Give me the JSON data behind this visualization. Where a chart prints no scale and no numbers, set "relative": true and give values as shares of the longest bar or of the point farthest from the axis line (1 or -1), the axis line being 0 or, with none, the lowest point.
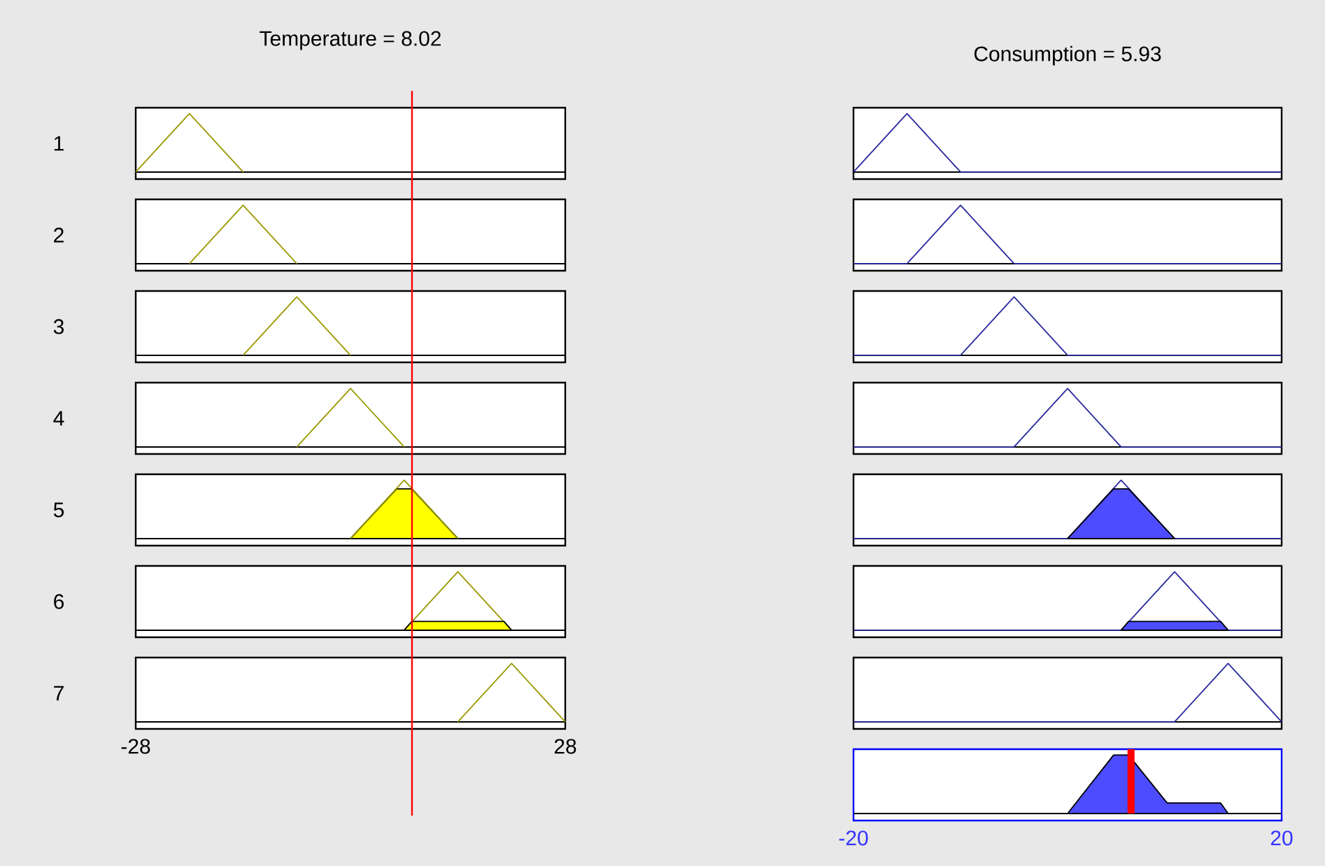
{
  "chart_data": [
    {
      "type": "line",
      "title": "Temperature = 8.02",
      "ylabel": "1",
      "relative": true,
      "xlim": [
        -28,
        28
      ],
      "xticks": [
        -28,
        28
      ],
      "tick_labels": false,
      "ref_lines": [
        {
          "axis": "x",
          "value": 8.02,
          "color": "#ff0000"
        }
      ],
      "series": [
        {
          "color": "#999900",
          "x": [
            -28,
            -21,
            -14
          ],
          "values": [
            0,
            1,
            0
          ]
        }
      ]
    },
    {
      "type": "line",
      "ylabel": "2",
      "relative": true,
      "xlim": [
        -28,
        28
      ],
      "xticks": [
        -28,
        28
      ],
      "tick_labels": false,
      "ref_lines": [
        {
          "axis": "x",
          "value": 8.02,
          "color": "#ff0000"
        }
      ],
      "series": [
        {
          "color": "#999900",
          "x": [
            -21,
            -14,
            -7
          ],
          "values": [
            0,
            1,
            0
          ]
        }
      ]
    },
    {
      "type": "line",
      "ylabel": "3",
      "relative": true,
      "xlim": [
        -28,
        28
      ],
      "xticks": [
        -28,
        28
      ],
      "tick_labels": false,
      "ref_lines": [
        {
          "axis": "x",
          "value": 8.02,
          "color": "#ff0000"
        }
      ],
      "series": [
        {
          "color": "#999900",
          "x": [
            -14,
            -7,
            0
          ],
          "values": [
            0,
            1,
            0
          ]
        }
      ]
    },
    {
      "type": "line",
      "ylabel": "4",
      "relative": true,
      "xlim": [
        -28,
        28
      ],
      "xticks": [
        -28,
        28
      ],
      "tick_labels": false,
      "ref_lines": [
        {
          "axis": "x",
          "value": 8.02,
          "color": "#ff0000"
        }
      ],
      "series": [
        {
          "color": "#999900",
          "x": [
            -7,
            0,
            7
          ],
          "values": [
            0,
            1,
            0
          ]
        }
      ]
    },
    {
      "type": "line",
      "ylabel": "5",
      "relative": true,
      "xlim": [
        -28,
        28
      ],
      "xticks": [
        -28,
        28
      ],
      "tick_labels": false,
      "ref_lines": [
        {
          "axis": "x",
          "value": 8.02,
          "color": "#ff0000"
        }
      ],
      "series": [
        {
          "type": "area",
          "color": "#ffff00",
          "x": [
            0,
            6.0,
            8.0,
            14
          ],
          "values": [
            0,
            0.85,
            0.85,
            0
          ]
        },
        {
          "color": "#999900",
          "x": [
            0,
            7,
            14
          ],
          "values": [
            0,
            1,
            0
          ]
        }
      ]
    },
    {
      "type": "line",
      "ylabel": "6",
      "relative": true,
      "xlim": [
        -28,
        28
      ],
      "xticks": [
        -28,
        28
      ],
      "tick_labels": false,
      "ref_lines": [
        {
          "axis": "x",
          "value": 8.02,
          "color": "#ff0000"
        }
      ],
      "series": [
        {
          "color": "#999900",
          "x": [
            7,
            14,
            21
          ],
          "values": [
            0,
            1,
            0
          ]
        },
        {
          "type": "area",
          "color": "#ffff00",
          "x": [
            7,
            8.0,
            20.0,
            21
          ],
          "values": [
            0,
            0.15,
            0.15,
            0
          ]
        }
      ]
    },
    {
      "type": "line",
      "ylabel": "7",
      "relative": true,
      "xlim": [
        -28,
        28
      ],
      "xticks": [
        -28,
        28
      ],
      "tick_labels": "x",
      "ref_lines": [
        {
          "axis": "x",
          "value": 8.02,
          "color": "#ff0000"
        }
      ],
      "series": [
        {
          "color": "#999900",
          "x": [
            14,
            21,
            28
          ],
          "values": [
            0,
            1,
            0
          ]
        }
      ]
    },
    {
      "type": "line",
      "title": "Consumption = 5.93",
      "relative": true,
      "xlim": [
        -20,
        20
      ],
      "xticks": [
        -20,
        20
      ],
      "tick_labels": false,
      "series": [
        {
          "color": "#2a2aa0",
          "x": [
            -20,
            -20,
            -15,
            -10,
            20
          ],
          "values": [
            0,
            0,
            1,
            0,
            0
          ]
        }
      ]
    },
    {
      "type": "line",
      "relative": true,
      "xlim": [
        -20,
        20
      ],
      "xticks": [
        -20,
        20
      ],
      "tick_labels": false,
      "series": [
        {
          "color": "#2a2aa0",
          "x": [
            -20,
            -15,
            -10,
            -5,
            20
          ],
          "values": [
            0,
            0,
            1,
            0,
            0
          ]
        }
      ]
    },
    {
      "type": "line",
      "relative": true,
      "xlim": [
        -20,
        20
      ],
      "xticks": [
        -20,
        20
      ],
      "tick_labels": false,
      "series": [
        {
          "color": "#2a2aa0",
          "x": [
            -20,
            -10,
            -5,
            0,
            20
          ],
          "values": [
            0,
            0,
            1,
            0,
            0
          ]
        }
      ]
    },
    {
      "type": "line",
      "relative": true,
      "xlim": [
        -20,
        20
      ],
      "xticks": [
        -20,
        20
      ],
      "tick_labels": false,
      "series": [
        {
          "color": "#2a2aa0",
          "x": [
            -20,
            -5,
            0,
            5,
            20
          ],
          "values": [
            0,
            0,
            1,
            0,
            0
          ]
        }
      ]
    },
    {
      "type": "line",
      "relative": true,
      "xlim": [
        -20,
        20
      ],
      "xticks": [
        -20,
        20
      ],
      "tick_labels": false,
      "series": [
        {
          "color": "#2a2aa0",
          "x": [
            -20,
            0,
            5,
            10,
            20
          ],
          "values": [
            0,
            0,
            1,
            0,
            0
          ]
        },
        {
          "type": "area",
          "color": "#4d4dff",
          "x": [
            0,
            4.3,
            5.7,
            10
          ],
          "values": [
            0,
            0.85,
            0.85,
            0
          ]
        }
      ]
    },
    {
      "type": "line",
      "relative": true,
      "xlim": [
        -20,
        20
      ],
      "xticks": [
        -20,
        20
      ],
      "tick_labels": false,
      "series": [
        {
          "color": "#2a2aa0",
          "x": [
            -20,
            5,
            10,
            15,
            20
          ],
          "values": [
            0,
            0,
            1,
            0,
            0
          ]
        },
        {
          "type": "area",
          "color": "#4d4dff",
          "x": [
            5,
            5.7,
            14.3,
            15
          ],
          "values": [
            0,
            0.15,
            0.15,
            0
          ]
        }
      ]
    },
    {
      "type": "line",
      "relative": true,
      "xlim": [
        -20,
        20
      ],
      "xticks": [
        -20,
        20
      ],
      "tick_labels": false,
      "series": [
        {
          "color": "#2a2aa0",
          "x": [
            -20,
            10,
            15,
            20
          ],
          "values": [
            0,
            0,
            1,
            0
          ]
        }
      ]
    },
    {
      "type": "line",
      "relative": true,
      "xlim": [
        -20,
        20
      ],
      "xticks": [
        -20,
        20
      ],
      "tick_labels": "x",
      "ref_lines": [
        {
          "axis": "x",
          "value": 5.93,
          "color": "#ff0000"
        }
      ],
      "series": [
        {
          "type": "area",
          "color": "#4d4dff",
          "x": [
            0,
            4.3,
            5.7,
            9.3,
            14.3,
            15
          ],
          "values": [
            0,
            1,
            1,
            0.18,
            0.18,
            0
          ]
        }
      ]
    }
  ]
}
